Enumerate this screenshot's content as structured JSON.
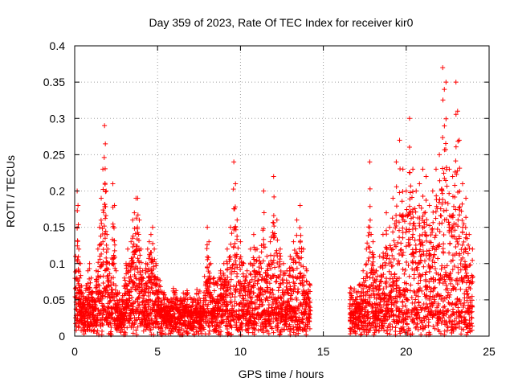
{
  "chart_data": {
    "type": "scatter",
    "title": "Day 359 of 2023, Rate Of TEC Index for receiver kir0",
    "xlabel": "GPS time / hours",
    "ylabel": "ROTI / TECUs",
    "xlim": [
      0,
      25
    ],
    "ylim": [
      0,
      0.4
    ],
    "xticks": [
      "0",
      "5",
      "10",
      "15",
      "20",
      "25"
    ],
    "yticks": [
      "0",
      "0.05",
      "0.1",
      "0.15",
      "0.2",
      "0.25",
      "0.3",
      "0.35",
      "0.4"
    ],
    "grid": true,
    "marker": "+",
    "color": "#ff0000",
    "data_gap_hours": [
      14.3,
      16.5
    ],
    "series": [
      {
        "x": [
          0.05,
          0.1,
          0.15,
          0.2,
          0.25,
          0.3,
          0.35,
          0.4,
          0.5,
          0.6,
          0.7,
          0.8,
          0.9,
          1.0,
          1.1,
          1.2,
          1.3,
          1.4,
          1.5,
          1.6,
          1.7,
          1.8,
          1.85,
          1.9,
          1.95,
          2.0,
          2.1,
          2.2,
          2.3,
          2.4,
          2.5,
          2.6,
          2.7,
          2.8,
          2.9,
          3.0,
          3.1,
          3.2,
          3.3,
          3.4,
          3.5,
          3.6,
          3.7,
          3.8,
          3.9,
          4.0,
          4.1,
          4.2,
          4.3,
          4.4,
          4.5,
          4.6,
          4.7,
          4.8,
          4.9,
          5.0,
          5.1,
          5.2,
          5.4,
          5.6,
          5.8,
          6.0,
          6.2,
          6.4,
          6.6,
          6.8,
          7.0,
          7.2,
          7.4,
          7.6,
          7.8,
          8.0,
          8.1,
          8.2,
          8.4,
          8.6,
          8.8,
          9.0,
          9.2,
          9.4,
          9.6,
          9.7,
          9.8,
          10.0,
          10.2,
          10.4,
          10.6,
          10.8,
          11.0,
          11.2,
          11.4,
          11.6,
          11.8,
          12.0,
          12.2,
          12.4,
          12.6,
          12.8,
          13.0,
          13.2,
          13.4,
          13.6,
          13.8,
          14.0,
          14.2,
          16.6,
          16.8,
          17.0,
          17.2,
          17.4,
          17.6,
          17.8,
          18.0,
          18.2,
          18.4,
          18.6,
          18.8,
          19.0,
          19.2,
          19.4,
          19.6,
          19.8,
          20.0,
          20.2,
          20.4,
          20.6,
          20.8,
          21.0,
          21.2,
          21.4,
          21.6,
          21.8,
          22.0,
          22.2,
          22.3,
          22.4,
          22.6,
          22.8,
          23.0,
          23.1,
          23.2,
          23.4,
          23.6,
          23.8,
          24.0
        ],
        "y": [
          0.11,
          0.09,
          0.2,
          0.18,
          0.12,
          0.08,
          0.1,
          0.06,
          0.05,
          0.04,
          0.07,
          0.09,
          0.1,
          0.08,
          0.06,
          0.05,
          0.09,
          0.12,
          0.15,
          0.19,
          0.23,
          0.29,
          0.265,
          0.2,
          0.14,
          0.12,
          0.1,
          0.08,
          0.21,
          0.18,
          0.09,
          0.06,
          0.05,
          0.04,
          0.05,
          0.08,
          0.1,
          0.12,
          0.1,
          0.13,
          0.16,
          0.17,
          0.19,
          0.19,
          0.16,
          0.12,
          0.09,
          0.07,
          0.1,
          0.12,
          0.13,
          0.14,
          0.15,
          0.12,
          0.1,
          0.08,
          0.07,
          0.06,
          0.05,
          0.05,
          0.04,
          0.06,
          0.05,
          0.04,
          0.05,
          0.06,
          0.04,
          0.03,
          0.05,
          0.04,
          0.06,
          0.15,
          0.13,
          0.1,
          0.08,
          0.07,
          0.09,
          0.1,
          0.12,
          0.15,
          0.24,
          0.21,
          0.16,
          0.13,
          0.1,
          0.09,
          0.12,
          0.14,
          0.12,
          0.1,
          0.2,
          0.11,
          0.13,
          0.22,
          0.16,
          0.12,
          0.1,
          0.09,
          0.11,
          0.13,
          0.16,
          0.18,
          0.12,
          0.09,
          0.07,
          0.06,
          0.05,
          0.06,
          0.07,
          0.09,
          0.12,
          0.24,
          0.13,
          0.09,
          0.11,
          0.14,
          0.17,
          0.15,
          0.19,
          0.24,
          0.27,
          0.23,
          0.2,
          0.3,
          0.23,
          0.2,
          0.21,
          0.23,
          0.22,
          0.18,
          0.2,
          0.23,
          0.25,
          0.37,
          0.34,
          0.35,
          0.23,
          0.22,
          0.35,
          0.31,
          0.27,
          0.21,
          0.19,
          0.14,
          0.12
        ]
      }
    ]
  }
}
